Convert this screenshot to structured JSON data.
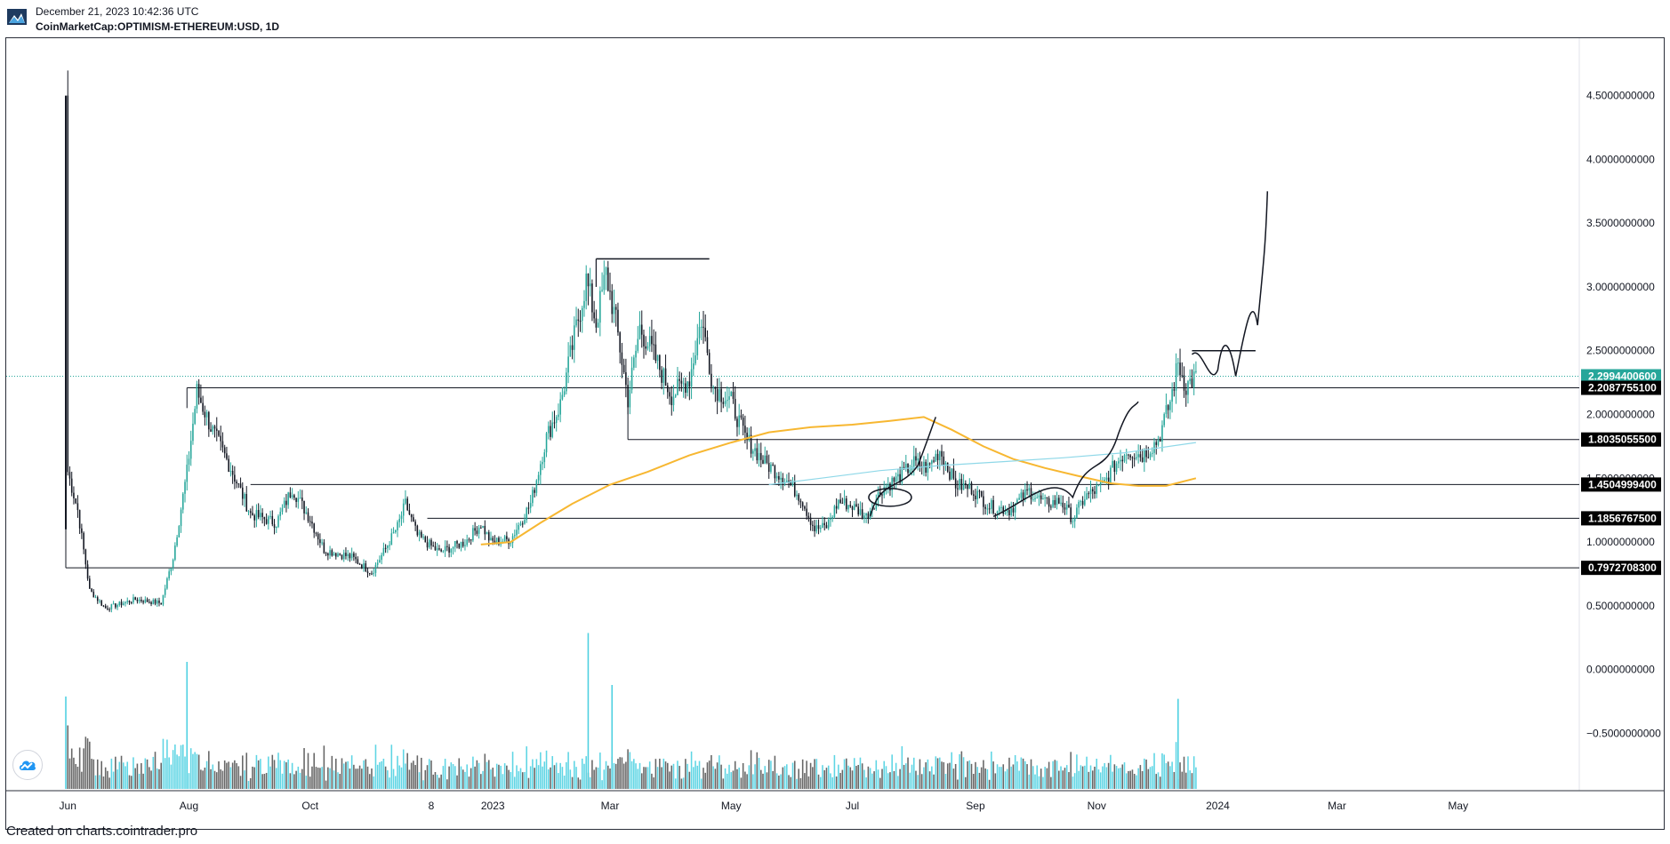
{
  "header": {
    "timestamp": "December 21, 2023 10:42:36 UTC",
    "symbol": "CoinMarketCap:OPTIMISM-ETHEREUM:USD, 1D"
  },
  "footer": {
    "text": "Created on charts.cointrader.pro"
  },
  "colors": {
    "up": "#26a69a",
    "down": "#131722",
    "vol_up": "#4dd0e1",
    "vol_down": "#555555",
    "ma_slow": "#f7b731",
    "ma_fast": "#8fd8e8",
    "current_price": "#26a69a"
  },
  "icons": {
    "logo": "cointrader-logo-icon",
    "fab": "cloud-chart-icon"
  },
  "chart_data": {
    "type": "candlestick",
    "title": "",
    "xlabel": "",
    "ylabel": "",
    "x_ticks": [
      "Jun",
      "Aug",
      "Oct",
      "8",
      "2023",
      "Mar",
      "May",
      "Jul",
      "Sep",
      "Nov",
      "2024",
      "Mar",
      "May"
    ],
    "y_ticks": [
      "4.5000000000",
      "4.0000000000",
      "3.5000000000",
      "3.0000000000",
      "2.5000000000",
      "2.0000000000",
      "1.5000000000",
      "1.0000000000",
      "0.5000000000",
      "0.0000000000",
      "−0.5000000000"
    ],
    "y_ticks_values": [
      4.5,
      4.0,
      3.5,
      3.0,
      2.5,
      2.0,
      1.5,
      1.0,
      0.5,
      0.0,
      -0.5
    ],
    "ylim": [
      -0.95,
      4.95
    ],
    "x_range": [
      "2022-05-01",
      "2024-07-01"
    ],
    "price_labels": [
      {
        "text": "2.2994400600",
        "value": 2.29944006,
        "kind": "current"
      },
      {
        "text": "2.2087755100",
        "value": 2.20877551,
        "kind": "level"
      },
      {
        "text": "1.8035055500",
        "value": 1.80350555,
        "kind": "level"
      },
      {
        "text": "1.4504999400",
        "value": 1.45049994,
        "kind": "level"
      },
      {
        "text": "1.1856767500",
        "value": 1.18567675,
        "kind": "level"
      },
      {
        "text": "0.7972708300",
        "value": 0.79727083,
        "kind": "level"
      }
    ],
    "horizontal_levels": [
      {
        "value": 2.20877551,
        "from": "2022-07-31"
      },
      {
        "value": 1.80350555,
        "from": "2023-03-10"
      },
      {
        "value": 1.45049994,
        "from": "2022-09-01"
      },
      {
        "value": 1.18567675,
        "from": "2022-11-29"
      },
      {
        "value": 0.79727083,
        "from": "2022-05-31"
      }
    ],
    "annotations": {
      "resistance_segment": {
        "value": 3.22,
        "from": "2023-02-22",
        "to": "2023-04-20"
      },
      "projection_top_line": {
        "value": 2.5,
        "from": "2023-12-19",
        "to": "2024-01-20"
      }
    },
    "price_series": {
      "interval": "1D",
      "keypoints": [
        [
          "2022-05-31",
          4.5
        ],
        [
          "2022-06-01",
          1.55
        ],
        [
          "2022-06-06",
          1.25
        ],
        [
          "2022-06-12",
          0.62
        ],
        [
          "2022-06-20",
          0.48
        ],
        [
          "2022-07-05",
          0.55
        ],
        [
          "2022-07-18",
          0.52
        ],
        [
          "2022-07-24",
          0.88
        ],
        [
          "2022-07-31",
          1.55
        ],
        [
          "2022-08-05",
          2.18
        ],
        [
          "2022-08-12",
          1.9
        ],
        [
          "2022-08-22",
          1.58
        ],
        [
          "2022-09-01",
          1.22
        ],
        [
          "2022-09-14",
          1.15
        ],
        [
          "2022-09-22",
          1.42
        ],
        [
          "2022-10-01",
          1.18
        ],
        [
          "2022-10-08",
          0.94
        ],
        [
          "2022-10-22",
          0.88
        ],
        [
          "2022-11-01",
          0.76
        ],
        [
          "2022-11-08",
          0.95
        ],
        [
          "2022-11-14",
          1.12
        ],
        [
          "2022-11-18",
          1.3
        ],
        [
          "2022-11-24",
          1.05
        ],
        [
          "2022-12-05",
          0.92
        ],
        [
          "2022-12-18",
          1.0
        ],
        [
          "2022-12-26",
          1.14
        ],
        [
          "2022-12-31",
          1.0
        ],
        [
          "2023-01-10",
          1.02
        ],
        [
          "2023-01-20",
          1.3
        ],
        [
          "2023-01-28",
          1.82
        ],
        [
          "2023-02-04",
          2.08
        ],
        [
          "2023-02-12",
          2.68
        ],
        [
          "2023-02-17",
          3.05
        ],
        [
          "2023-02-22",
          2.72
        ],
        [
          "2023-02-27",
          3.1
        ],
        [
          "2023-03-04",
          2.72
        ],
        [
          "2023-03-10",
          2.12
        ],
        [
          "2023-03-16",
          2.68
        ],
        [
          "2023-03-22",
          2.5
        ],
        [
          "2023-04-01",
          2.15
        ],
        [
          "2023-04-10",
          2.28
        ],
        [
          "2023-04-16",
          2.75
        ],
        [
          "2023-04-22",
          2.22
        ],
        [
          "2023-05-01",
          2.1
        ],
        [
          "2023-05-08",
          1.82
        ],
        [
          "2023-05-18",
          1.62
        ],
        [
          "2023-05-28",
          1.5
        ],
        [
          "2023-06-05",
          1.35
        ],
        [
          "2023-06-12",
          1.1
        ],
        [
          "2023-06-18",
          1.12
        ],
        [
          "2023-06-24",
          1.32
        ],
        [
          "2023-07-01",
          1.28
        ],
        [
          "2023-07-08",
          1.2
        ],
        [
          "2023-07-16",
          1.42
        ],
        [
          "2023-07-24",
          1.5
        ],
        [
          "2023-08-01",
          1.62
        ],
        [
          "2023-08-08",
          1.58
        ],
        [
          "2023-08-14",
          1.72
        ],
        [
          "2023-08-22",
          1.45
        ],
        [
          "2023-08-30",
          1.42
        ],
        [
          "2023-09-08",
          1.28
        ],
        [
          "2023-09-18",
          1.25
        ],
        [
          "2023-09-28",
          1.4
        ],
        [
          "2023-10-06",
          1.3
        ],
        [
          "2023-10-14",
          1.32
        ],
        [
          "2023-10-20",
          1.18
        ],
        [
          "2023-10-26",
          1.35
        ],
        [
          "2023-11-04",
          1.44
        ],
        [
          "2023-11-10",
          1.6
        ],
        [
          "2023-11-16",
          1.72
        ],
        [
          "2023-11-24",
          1.68
        ],
        [
          "2023-12-02",
          1.8
        ],
        [
          "2023-12-08",
          2.1
        ],
        [
          "2023-12-12",
          2.4
        ],
        [
          "2023-12-16",
          2.22
        ],
        [
          "2023-12-21",
          2.3
        ]
      ]
    },
    "ma_slow_series": [
      [
        "2022-12-26",
        0.98
      ],
      [
        "2023-01-10",
        1.0
      ],
      [
        "2023-01-25",
        1.15
      ],
      [
        "2023-02-10",
        1.3
      ],
      [
        "2023-03-01",
        1.45
      ],
      [
        "2023-03-20",
        1.55
      ],
      [
        "2023-04-10",
        1.68
      ],
      [
        "2023-05-01",
        1.78
      ],
      [
        "2023-05-20",
        1.86
      ],
      [
        "2023-06-10",
        1.9
      ],
      [
        "2023-07-01",
        1.92
      ],
      [
        "2023-07-20",
        1.95
      ],
      [
        "2023-08-06",
        1.98
      ],
      [
        "2023-08-20",
        1.88
      ],
      [
        "2023-09-05",
        1.75
      ],
      [
        "2023-09-20",
        1.65
      ],
      [
        "2023-10-06",
        1.58
      ],
      [
        "2023-10-22",
        1.52
      ],
      [
        "2023-11-08",
        1.46
      ],
      [
        "2023-11-22",
        1.44
      ],
      [
        "2023-12-06",
        1.44
      ],
      [
        "2023-12-21",
        1.5
      ]
    ],
    "ma_fast_series": [
      [
        "2023-05-20",
        1.45
      ],
      [
        "2023-06-15",
        1.5
      ],
      [
        "2023-07-15",
        1.56
      ],
      [
        "2023-08-15",
        1.6
      ],
      [
        "2023-09-15",
        1.63
      ],
      [
        "2023-10-15",
        1.66
      ],
      [
        "2023-11-15",
        1.7
      ],
      [
        "2023-12-21",
        1.78
      ]
    ],
    "volume": {
      "from": "2022-05-31",
      "to": "2023-12-21",
      "scale_max": 1.0
    }
  }
}
